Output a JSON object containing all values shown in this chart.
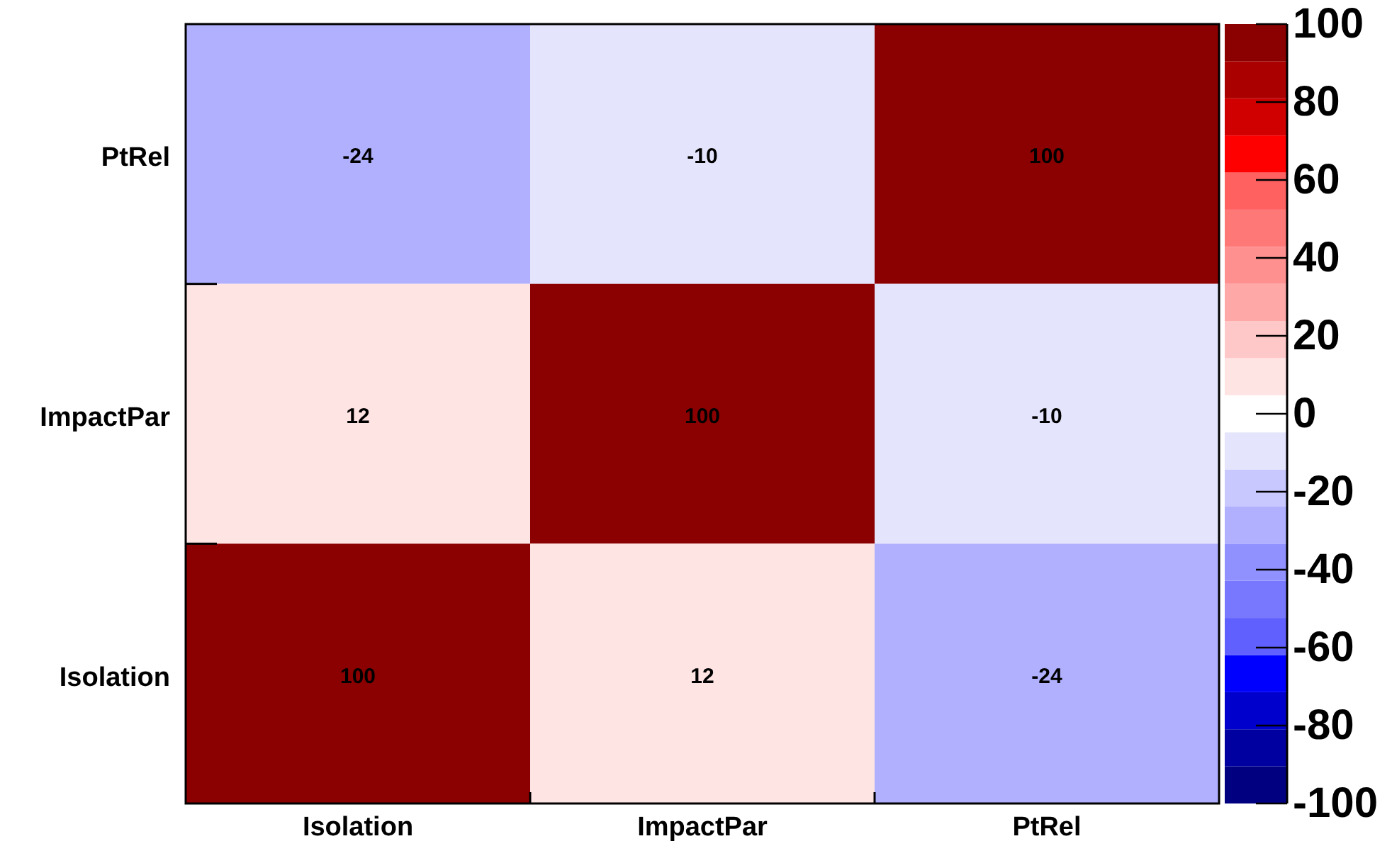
{
  "chart_data": {
    "type": "heatmap",
    "categories": [
      "Isolation",
      "ImpactPar",
      "PtRel"
    ],
    "y_categories": [
      "PtRel",
      "ImpactPar",
      "Isolation"
    ],
    "cells": [
      [
        -24,
        -10,
        100
      ],
      [
        12,
        100,
        -10
      ],
      [
        100,
        12,
        -24
      ]
    ],
    "clim": [
      -100,
      100
    ],
    "cticks": [
      -100,
      -80,
      -60,
      -40,
      -20,
      0,
      20,
      40,
      60,
      80,
      100
    ],
    "colors": [
      "#000080",
      "#0000a0",
      "#0000cc",
      "#0000ff",
      "#6060ff",
      "#7878ff",
      "#9090ff",
      "#b0b0ff",
      "#c8c8ff",
      "#e4e4fc",
      "#ffffff",
      "#ffe4e4",
      "#ffc8c8",
      "#ffa8a8",
      "#ff9090",
      "#ff7878",
      "#ff6060",
      "#ff0000",
      "#d00000",
      "#aa0000",
      "#8b0000"
    ],
    "data_labels": true
  }
}
